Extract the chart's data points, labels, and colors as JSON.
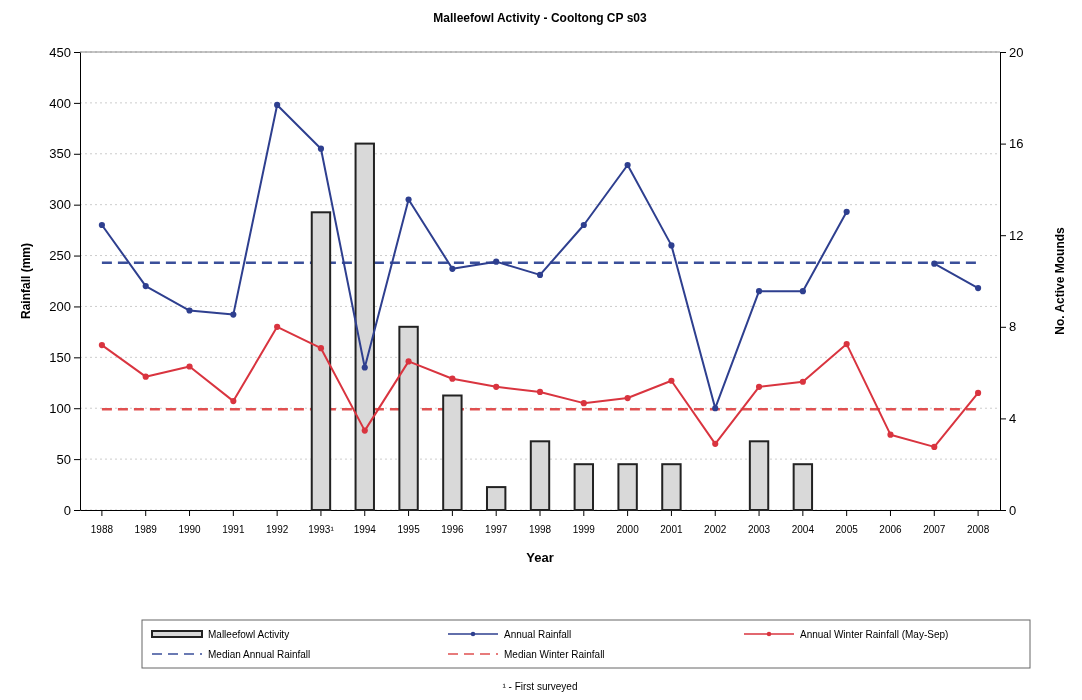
{
  "chart_data": {
    "type": "bar",
    "title": "Malleefowl Activity - Cooltong CP s03",
    "xlabel": "Year",
    "ylabel": "Rainfall (mm)",
    "y2label": "No. Active Mounds",
    "categories": [
      "1988",
      "1989",
      "1990",
      "1991",
      "1992",
      "1993¹",
      "1994",
      "1995",
      "1996",
      "1997",
      "1998",
      "1999",
      "2000",
      "2001",
      "2002",
      "2003",
      "2004",
      "2005",
      "2006",
      "2007",
      "2008"
    ],
    "series": [
      {
        "name": "Malleefowl Activity",
        "axis": "y2",
        "color": "#d9d9d9",
        "values": [
          null,
          null,
          null,
          null,
          null,
          13,
          16,
          8,
          5,
          1,
          3,
          2,
          2,
          2,
          0,
          3,
          2,
          0,
          0,
          0,
          0
        ]
      },
      {
        "name": "Annual Rainfall",
        "type": "line",
        "color": "#2e3f8f",
        "values": [
          280,
          220,
          196,
          192,
          398,
          355,
          140,
          305,
          237,
          244,
          231,
          280,
          339,
          260,
          100,
          215,
          215,
          293,
          null,
          242,
          218
        ]
      },
      {
        "name": "Annual Winter Rainfall (May-Sep)",
        "type": "line",
        "color": "#d9343f",
        "values": [
          162,
          131,
          141,
          107,
          180,
          159,
          78,
          146,
          129,
          121,
          116,
          105,
          110,
          127,
          65,
          121,
          126,
          163,
          74,
          62,
          115
        ]
      }
    ],
    "ref_lines": [
      {
        "axis": "y",
        "value": 243,
        "label": "Median Annual Rainfall",
        "color": "#3a4f9a",
        "line_style": "dashed"
      },
      {
        "axis": "y",
        "value": 99,
        "label": "Median Winter Rainfall",
        "color": "#e05050",
        "line_style": "dashed"
      }
    ],
    "ylim": [
      0,
      450
    ],
    "yticks": [
      0,
      50,
      100,
      150,
      200,
      250,
      300,
      350,
      400,
      450
    ],
    "y2lim": [
      0,
      20
    ],
    "y2ticks": [
      0,
      4,
      8,
      12,
      16,
      20
    ],
    "grid": "y",
    "legend": "bottom",
    "marker": "circle",
    "annotations": [
      "¹ - First surveyed"
    ]
  }
}
